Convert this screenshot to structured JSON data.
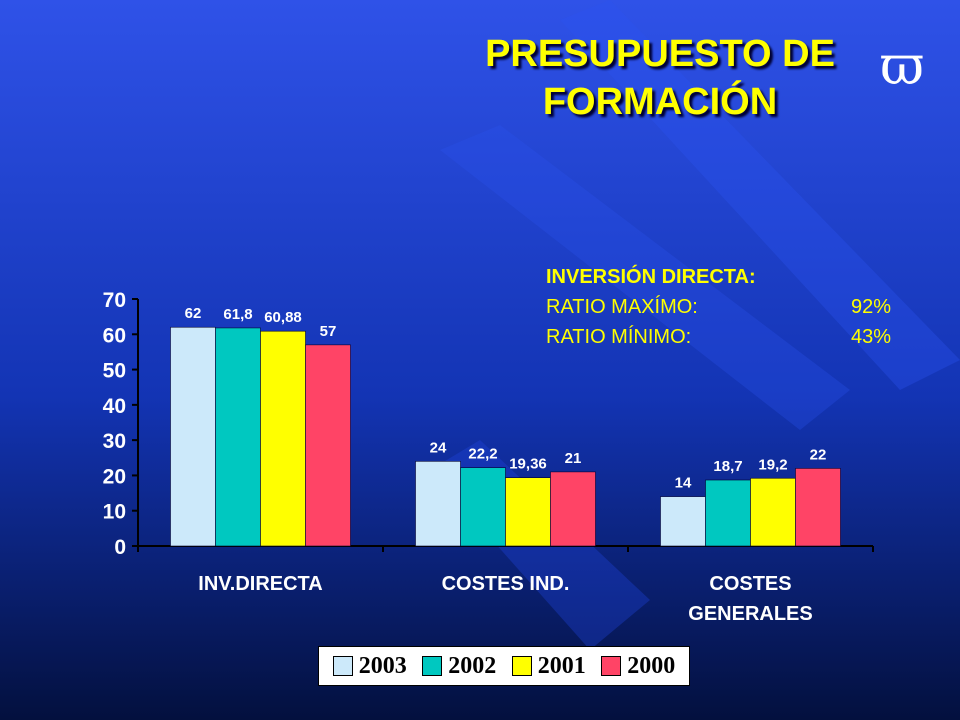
{
  "slide": {
    "title_line1": "PRESUPUESTO DE",
    "title_line2": "FORMACIÓN",
    "logo_glyph": "ϖ"
  },
  "info_box": {
    "heading": "INVERSIÓN DIRECTA:",
    "rows": [
      {
        "label": "RATIO MAXÍMO:",
        "value": "92%"
      },
      {
        "label": "RATIO MÍNIMO:",
        "value": "43%"
      }
    ]
  },
  "colors": {
    "2003": "#CCE9FA",
    "2002": "#00C8C0",
    "2001": "#FFFF00",
    "2000": "#FF4466",
    "text": "#FFFFFF",
    "accent": "#FFFF00"
  },
  "chart_data": {
    "type": "bar",
    "title": "",
    "xlabel": "",
    "ylabel": "",
    "ylim": [
      0,
      70
    ],
    "yticks": [
      0,
      10,
      20,
      30,
      40,
      50,
      60,
      70
    ],
    "categories": [
      [
        "INV.DIRECTA"
      ],
      [
        "COSTES IND."
      ],
      [
        "COSTES",
        "GENERALES"
      ]
    ],
    "series": [
      {
        "name": "2003",
        "values": [
          62,
          24,
          14
        ],
        "labels": [
          "62",
          "24",
          "14"
        ]
      },
      {
        "name": "2002",
        "values": [
          61.8,
          22.2,
          18.7
        ],
        "labels": [
          "61,8",
          "22,2",
          "18,7"
        ]
      },
      {
        "name": "2001",
        "values": [
          60.88,
          19.36,
          19.2
        ],
        "labels": [
          "60,88",
          "19,36",
          "19,2"
        ]
      },
      {
        "name": "2000",
        "values": [
          57,
          21,
          22
        ],
        "labels": [
          "57",
          "21",
          "22"
        ]
      }
    ],
    "legend_position": "bottom",
    "grid": false
  }
}
